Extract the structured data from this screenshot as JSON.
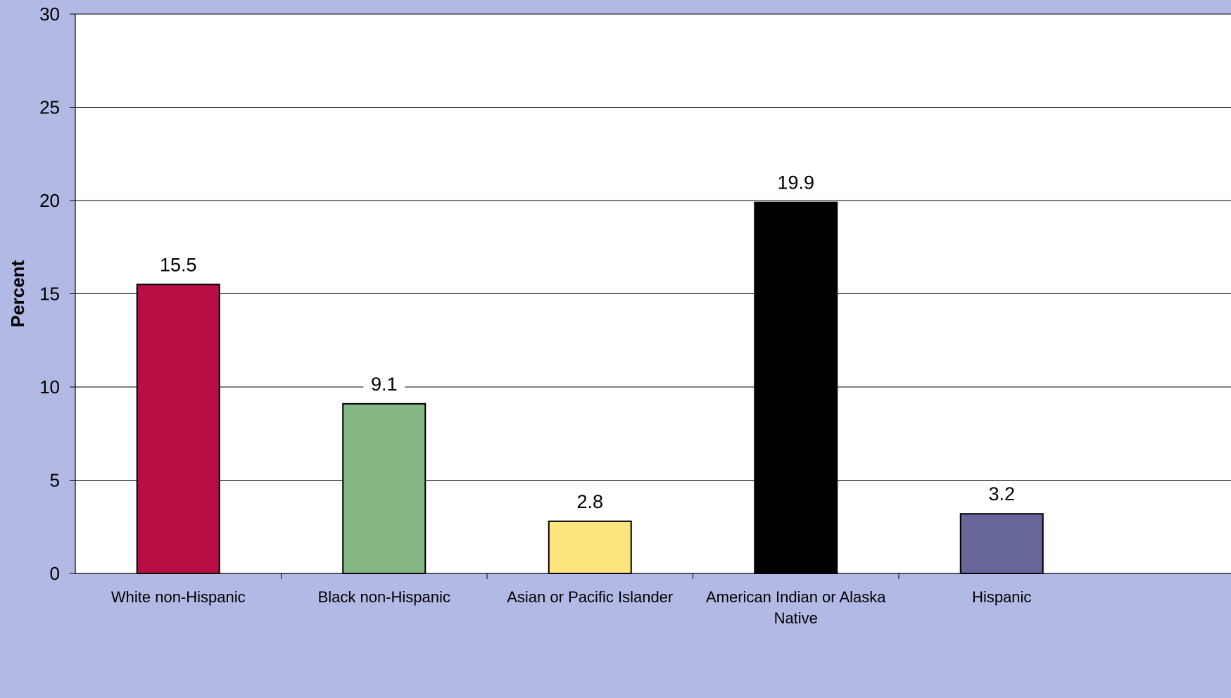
{
  "chart_data": {
    "type": "bar",
    "categories": [
      "White non-Hispanic",
      "Black non-Hispanic",
      "Asian or Pacific Islander",
      "American Indian or Alaska Native",
      "Hispanic"
    ],
    "category_lines": [
      [
        "White non-Hispanic"
      ],
      [
        "Black non-Hispanic"
      ],
      [
        "Asian or Pacific Islander"
      ],
      [
        "American Indian or Alaska",
        "Native"
      ],
      [
        "Hispanic"
      ]
    ],
    "values": [
      15.5,
      9.1,
      2.8,
      19.9,
      3.2
    ],
    "data_labels": [
      "15.5",
      "9.1",
      "2.8",
      "19.9",
      "3.2"
    ],
    "bar_colors": [
      "#b80e44",
      "#84b783",
      "#fde57d",
      "#000000",
      "#666699"
    ],
    "title": "",
    "xlabel": "",
    "ylabel": "Percent",
    "ylim": [
      0,
      30
    ],
    "yticks": [
      0,
      5,
      10,
      15,
      20,
      25,
      30
    ],
    "grid": true,
    "legend": "none",
    "colors": {
      "page_background": "#b2b9e4",
      "plot_background": "#ffffff",
      "gridline": "#000000"
    }
  }
}
